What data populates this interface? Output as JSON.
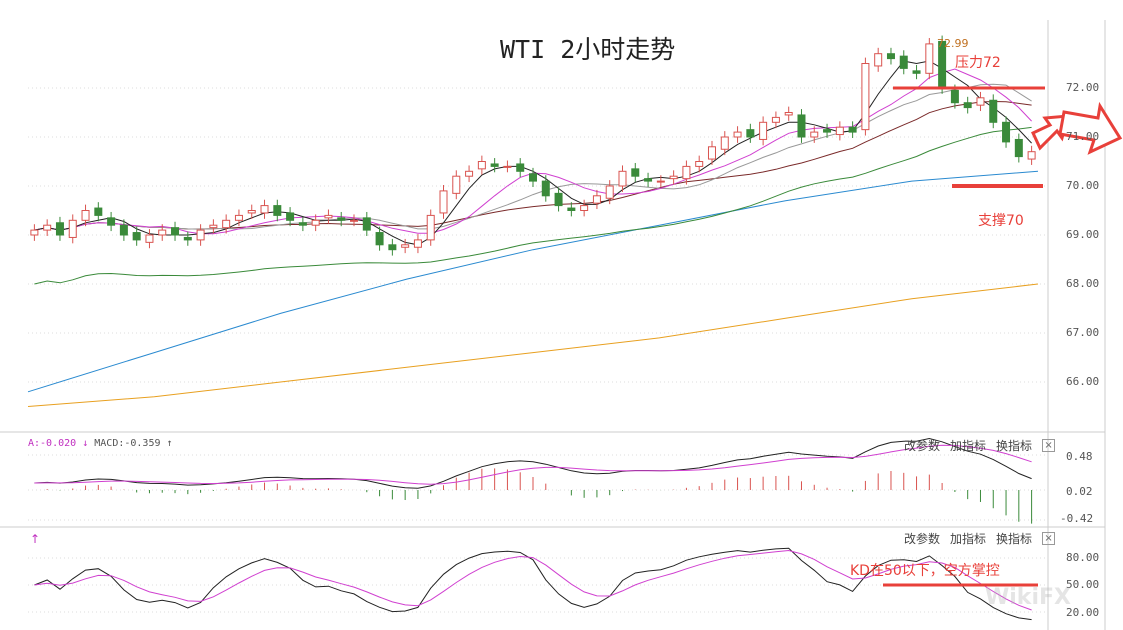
{
  "title": "WTI 2小时走势",
  "annotations": {
    "high": "72.99",
    "resistance": "压力72",
    "support": "支撑70",
    "kd_note": "KD在50以下，空方掌控"
  },
  "macd_header": {
    "dea": "A:-0.020",
    "dea_arrow": "↓",
    "macd": "MACD:-0.359",
    "macd_arrow": "↑"
  },
  "kd_header": {
    "arrow": "↑"
  },
  "buttons": {
    "edit": "改参数",
    "add": "加指标",
    "switch": "换指标",
    "close": "×"
  },
  "price_axis": [
    "72.00",
    "71.00",
    "70.00",
    "69.00",
    "68.00",
    "67.00",
    "66.00"
  ],
  "macd_axis": [
    "0.48",
    "0.02",
    "-0.42"
  ],
  "kd_axis": [
    "80.00",
    "50.00",
    "20.00"
  ],
  "watermark": "WikiFX",
  "colors": {
    "up": "#d9534f",
    "down": "#3a8a3a",
    "ma5": "#222222",
    "ma10": "#d040d0",
    "ma20": "#999999",
    "ma30": "#7a2a2a",
    "ma60": "#3a8a3a",
    "ma120": "#2a8ad0",
    "ma250": "#e8a020",
    "line": "#e8403a"
  },
  "chart_data": {
    "type": "candlestick",
    "ylim": [
      65.5,
      73.2
    ],
    "closes": [
      69.1,
      69.2,
      69.0,
      69.3,
      69.5,
      69.4,
      69.2,
      69.0,
      68.9,
      69.0,
      69.1,
      69.0,
      68.9,
      69.1,
      69.2,
      69.3,
      69.4,
      69.5,
      69.6,
      69.4,
      69.3,
      69.2,
      69.3,
      69.4,
      69.3,
      69.3,
      69.1,
      68.8,
      68.7,
      68.8,
      68.9,
      69.4,
      69.9,
      70.2,
      70.3,
      70.5,
      70.4,
      70.4,
      70.3,
      70.1,
      69.8,
      69.6,
      69.5,
      69.6,
      69.8,
      70.0,
      70.3,
      70.2,
      70.1,
      70.1,
      70.2,
      70.4,
      70.5,
      70.8,
      71.0,
      71.1,
      71.0,
      71.3,
      71.4,
      71.5,
      71.0,
      71.1,
      71.1,
      71.2,
      71.1,
      72.5,
      72.7,
      72.6,
      72.4,
      72.3,
      72.9,
      72.0,
      71.7,
      71.6,
      71.8,
      71.3,
      70.9,
      70.6,
      70.7
    ],
    "ma120": [
      65.8,
      66.6,
      67.4,
      68.1,
      68.7,
      69.2,
      69.7,
      70.1,
      70.3
    ],
    "ma250": [
      65.5,
      65.7,
      66.0,
      66.3,
      66.6,
      66.9,
      67.3,
      67.7,
      68.0
    ],
    "resistance": 72,
    "support": 70,
    "kd_level": 50
  }
}
